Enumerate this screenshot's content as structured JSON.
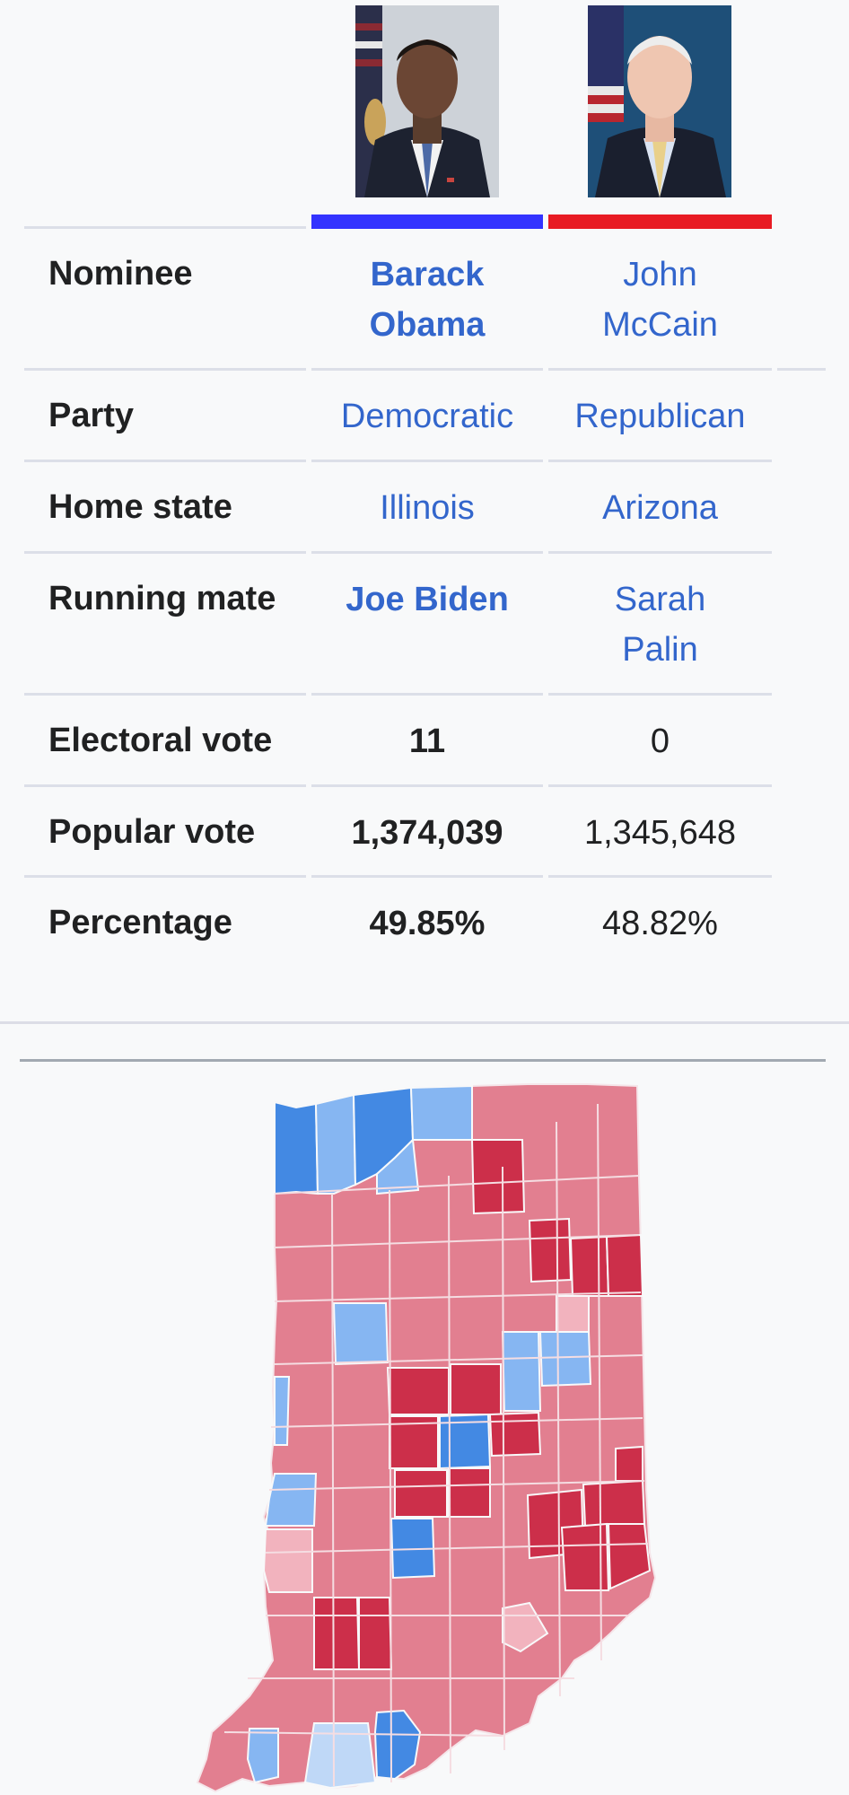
{
  "infobox": {
    "colors": {
      "democratic": "#3333ff",
      "republican": "#e81b23",
      "link": "#3366cc"
    },
    "candidates": [
      {
        "portrait_icon": "candidate-portrait-obama",
        "nominee_line1": "Barack",
        "nominee_line2": "Obama",
        "party": "Democratic",
        "home_state": "Illinois",
        "running_mate": "Joe Biden",
        "electoral_vote": "11",
        "popular_vote": "1,374,039",
        "percentage": "49.85%"
      },
      {
        "portrait_icon": "candidate-portrait-mccain",
        "nominee_line1": "John",
        "nominee_line2": "McCain",
        "party": "Republican",
        "home_state": "Arizona",
        "running_mate_line1": "Sarah",
        "running_mate_line2": "Palin",
        "electoral_vote": "0",
        "popular_vote": "1,345,648",
        "percentage": "48.82%"
      }
    ],
    "row_labels": {
      "nominee": "Nominee",
      "party": "Party",
      "home_state": "Home state",
      "running_mate": "Running mate",
      "electoral_vote": "Electoral vote",
      "popular_vote": "Popular vote",
      "percentage": "Percentage"
    }
  },
  "map": {
    "icon": "indiana-county-results-map",
    "colors": {
      "dem_strong": "#4389e3",
      "dem_light": "#86b6f2",
      "dem_faint": "#bfd8f7",
      "rep_faint": "#f2b3be",
      "rep_medium": "#e27f90",
      "rep_strong": "#cc2f4a"
    }
  }
}
